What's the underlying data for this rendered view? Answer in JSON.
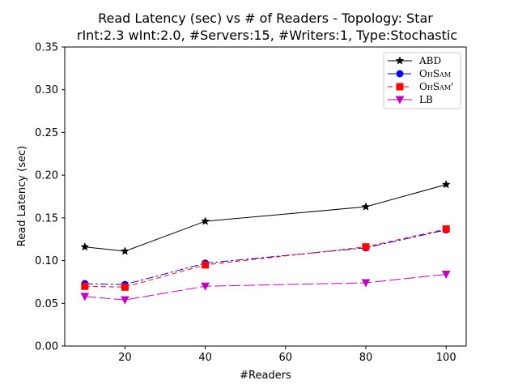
{
  "chart_data": {
    "type": "line",
    "title": "Read Latency (sec) vs # of Readers - Topology: Star",
    "subtitle": "rInt:2.3 wInt:2.0, #Servers:15, #Writers:1, Type:Stochastic",
    "xlabel": "#Readers",
    "ylabel": "Read Latency (sec)",
    "x": [
      10,
      20,
      40,
      80,
      100
    ],
    "xlim": [
      5,
      105
    ],
    "ylim": [
      0,
      0.35
    ],
    "xticks": [
      "20",
      "40",
      "60",
      "80",
      "100"
    ],
    "yticks": [
      "0.00",
      "0.05",
      "0.10",
      "0.15",
      "0.20",
      "0.25",
      "0.30",
      "0.35"
    ],
    "grid": false,
    "legend_position": "top-right",
    "series": [
      {
        "name": "ABD",
        "values": [
          0.116,
          0.111,
          0.146,
          0.163,
          0.189
        ],
        "color": "#000000",
        "marker": "star",
        "dash": ""
      },
      {
        "name": "OhSam",
        "values": [
          0.073,
          0.072,
          0.097,
          0.115,
          0.136
        ],
        "color": "#0000ff",
        "marker": "circle",
        "dash": "10 3 3 3"
      },
      {
        "name": "OhSam'",
        "values": [
          0.07,
          0.069,
          0.095,
          0.116,
          0.137
        ],
        "color": "#ff0000",
        "marker": "square",
        "dash": "6 4"
      },
      {
        "name": "LB",
        "values": [
          0.058,
          0.054,
          0.07,
          0.074,
          0.084
        ],
        "color": "#bf00bf",
        "marker": "triangle-down",
        "dash": "14 4"
      }
    ]
  }
}
